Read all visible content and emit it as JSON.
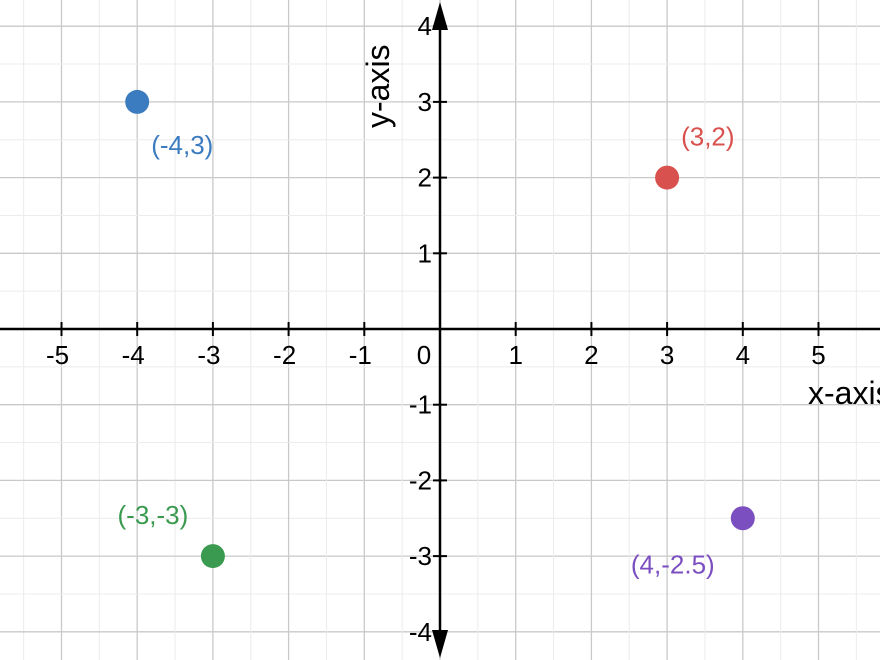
{
  "chart_data": {
    "type": "scatter",
    "title": "",
    "xlabel": "x-axis",
    "ylabel": "y-axis",
    "xlim": [
      -5.8,
      5.8
    ],
    "ylim": [
      -4.3,
      4.3
    ],
    "grid": true,
    "x_ticks": [
      "-5",
      "-4",
      "-3",
      "-2",
      "-1",
      "0",
      "1",
      "2",
      "3",
      "4",
      "5"
    ],
    "y_ticks": [
      "4",
      "3",
      "2",
      "1",
      "-1",
      "-2",
      "-3",
      "-4"
    ],
    "points": [
      {
        "x": -4,
        "y": 3,
        "label": "(-4,3)",
        "color": "#3b7bbf"
      },
      {
        "x": 3,
        "y": 2,
        "label": "(3,2)",
        "color": "#d9514e"
      },
      {
        "x": -3,
        "y": -3,
        "label": "(-3,-3)",
        "color": "#3a9a4f"
      },
      {
        "x": 4,
        "y": -2.5,
        "label": "(4,-2.5)",
        "color": "#7b4fc0"
      }
    ]
  }
}
